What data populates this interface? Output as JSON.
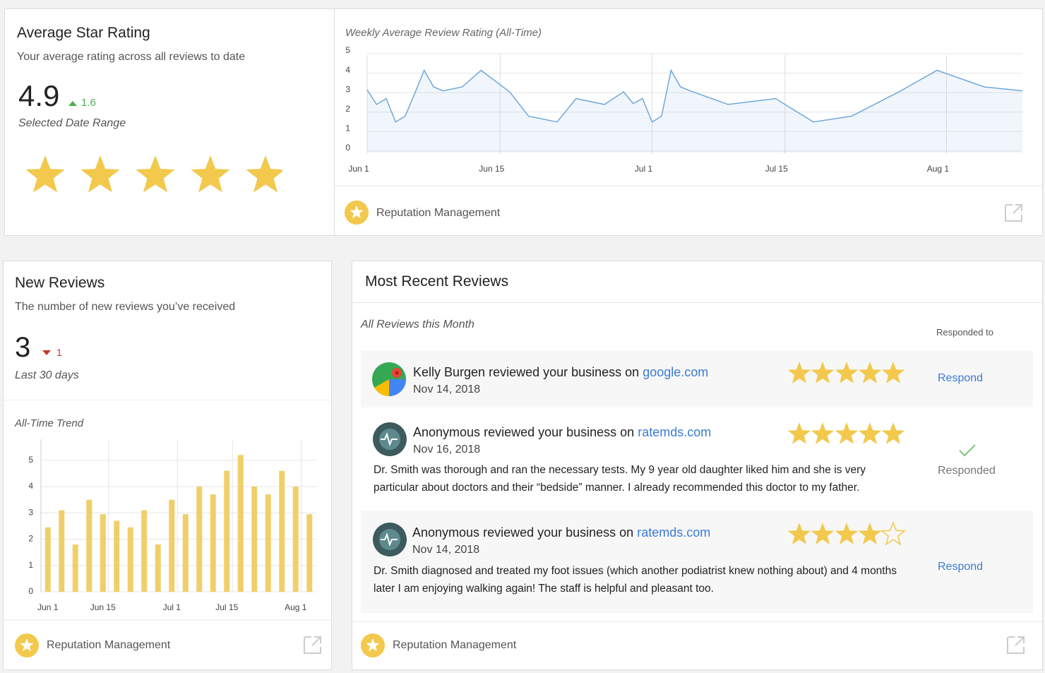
{
  "rating_card": {
    "title": "Average Star Rating",
    "subtitle": "Your average rating across all reviews to date",
    "value": 4.9,
    "change": 1.6,
    "change_direction": "up",
    "range_label": "Selected Date Range"
  },
  "weekly_card": {
    "footer": "Reputation Management"
  },
  "new_reviews_card": {
    "title": "New Reviews",
    "subtitle": "The number of new reviews you’ve received",
    "value": 3,
    "change": 1,
    "change_direction": "down",
    "range_label": "Last 30 days",
    "footer": "Reputation Management"
  },
  "recent_reviews_card": {
    "title": "Most Recent Reviews",
    "subtitle": "All Reviews this Month",
    "column_label": "Responded to",
    "footer": "Reputation Management",
    "reviews": [
      {
        "author": "Kelly Burgen",
        "action": "reviewed your business on",
        "site": "google.com",
        "date": "Nov 14, 2018",
        "rating": 5,
        "status": "Respond"
      },
      {
        "author": "Anonymous",
        "action": "reviewed your business on",
        "site": "ratemds.com",
        "date": "Nov 16, 2018",
        "rating": 5,
        "text": "Dr. Smith was thorough and ran the necessary tests. My 9 year old daughter liked him and she is very particular about doctors and their “bedside” manner. I already recommended this doctor to my father.",
        "status": "Responded"
      },
      {
        "author": "Anonymous",
        "action": "reviewed your business on",
        "site": "ratemds.com",
        "date": "Nov 14, 2018",
        "rating": 4,
        "text": "Dr. Smith diagnosed and treated my foot issues (which another podiatrist knew nothing about) and 4 months later I am enjoying walking again! The staff is helpful and pleasant too.",
        "status": "Respond"
      }
    ]
  },
  "chart_data": [
    {
      "type": "line",
      "title": "Weekly Average Review Rating (All-Time)",
      "color": "#6fa8dc",
      "x": [
        "Jun 1",
        "Jun 2",
        "Jun 3",
        "Jun 4",
        "Jun 5",
        "Jun 6",
        "Jun 7",
        "Jun 8",
        "Jun 9",
        "Jun 11",
        "Jun 13",
        "Jun 16",
        "Jun 18",
        "Jun 21",
        "Jun 23",
        "Jun 26",
        "Jun 28",
        "Jun 29",
        "Jun 30",
        "Jul 1",
        "Jul 2",
        "Jul 3",
        "Jul 4",
        "Jul 5",
        "Jul 9",
        "Jul 14",
        "Jul 18",
        "Jul 22",
        "Jul 27",
        "Jul 31",
        "Aug 5",
        "Aug 9"
      ],
      "values": [
        3.0,
        2.25,
        2.55,
        1.35,
        1.65,
        2.8,
        4.0,
        3.15,
        2.95,
        3.15,
        4.0,
        2.9,
        1.65,
        1.35,
        2.55,
        2.25,
        2.9,
        2.3,
        2.55,
        1.35,
        1.65,
        4.0,
        3.15,
        2.95,
        2.25,
        2.55,
        1.35,
        1.65,
        2.9,
        4.0,
        3.15,
        2.95
      ],
      "xlim": [
        "Jun 1",
        "Aug 9"
      ],
      "xticks": [
        "Jun 1",
        "Jun 15",
        "Jul 1",
        "Jul 15",
        "Aug 1"
      ],
      "ylim": [
        0,
        5
      ],
      "yticks": [
        0,
        1,
        2,
        3,
        4,
        5
      ],
      "grid": true
    },
    {
      "type": "bar",
      "title": "All-Time Trend",
      "color": "#f0cf6a",
      "categories": [
        "Jun 1",
        null,
        null,
        null,
        "Jun 15",
        null,
        null,
        null,
        null,
        "Jul 1",
        null,
        null,
        null,
        "Jul 15",
        null,
        null,
        null,
        null,
        "Aug 1",
        null
      ],
      "values": [
        2.45,
        3.1,
        1.8,
        3.5,
        2.95,
        2.7,
        2.45,
        3.1,
        1.8,
        3.5,
        2.95,
        4.0,
        3.7,
        4.6,
        5.2,
        4.0,
        3.7,
        4.6,
        4.0,
        2.95
      ],
      "ylim": [
        0,
        5.8
      ],
      "yticks": [
        0,
        1,
        2,
        3,
        4,
        5
      ],
      "grid": true
    }
  ]
}
